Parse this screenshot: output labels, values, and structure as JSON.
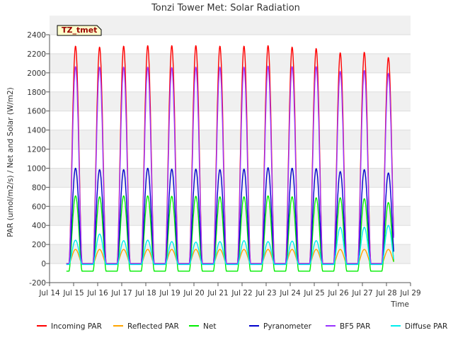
{
  "chart_data": {
    "type": "line",
    "title": "Tonzi Tower Met: Solar Radiation",
    "xlabel": "Time",
    "ylabel": "PAR (umol/m2/s) / Net and Solar (W/m2)",
    "site_label": "TZ_tmet",
    "xlim": [
      14,
      29
    ],
    "ylim": [
      -200,
      2400
    ],
    "x_ticks": [
      "Jul 14",
      "Jul 15",
      "Jul 16",
      "Jul 17",
      "Jul 18",
      "Jul 19",
      "Jul 20",
      "Jul 21",
      "Jul 22",
      "Jul 23",
      "Jul 24",
      "Jul 25",
      "Jul 26",
      "Jul 27",
      "Jul 28",
      "Jul 29"
    ],
    "y_ticks": [
      -200,
      0,
      200,
      400,
      600,
      800,
      1000,
      1200,
      1400,
      1600,
      1800,
      2000,
      2200,
      2400
    ],
    "grid": true,
    "legend_position": "bottom",
    "x_range_of_data": [
      14.7,
      28.3
    ],
    "day_peak_x": [
      15.08,
      16.08,
      17.08,
      18.08,
      19.08,
      20.08,
      21.08,
      22.08,
      23.08,
      24.08,
      25.08,
      26.08,
      27.08,
      28.08
    ],
    "series": [
      {
        "name": "Incoming PAR",
        "color": "#ff0000",
        "night": 0,
        "peaks": [
          2280,
          2270,
          2280,
          2285,
          2285,
          2285,
          2280,
          2280,
          2285,
          2270,
          2255,
          2210,
          2215,
          2160
        ]
      },
      {
        "name": "Reflected PAR",
        "color": "#ffa500",
        "night": 0,
        "peaks": [
          148,
          148,
          148,
          148,
          148,
          148,
          148,
          148,
          148,
          148,
          148,
          148,
          148,
          148
        ]
      },
      {
        "name": "Net",
        "color": "#00ee00",
        "night": -80,
        "peaks": [
          710,
          700,
          710,
          710,
          705,
          705,
          700,
          700,
          710,
          700,
          690,
          690,
          680,
          640
        ]
      },
      {
        "name": "Pyranometer",
        "color": "#0000cc",
        "night": -5,
        "peaks": [
          1000,
          985,
          985,
          1000,
          990,
          990,
          985,
          990,
          1005,
          1000,
          995,
          965,
          985,
          950
        ]
      },
      {
        "name": "BF5 PAR",
        "color": "#9933ff",
        "night": 0,
        "peaks": [
          2065,
          2060,
          2060,
          2060,
          2055,
          2060,
          2060,
          2060,
          2070,
          2065,
          2065,
          2015,
          2025,
          1995
        ]
      },
      {
        "name": "Diffuse PAR",
        "color": "#00eeee",
        "night": -10,
        "peaks": [
          245,
          310,
          240,
          245,
          230,
          225,
          230,
          240,
          230,
          235,
          240,
          380,
          380,
          400
        ]
      }
    ]
  }
}
